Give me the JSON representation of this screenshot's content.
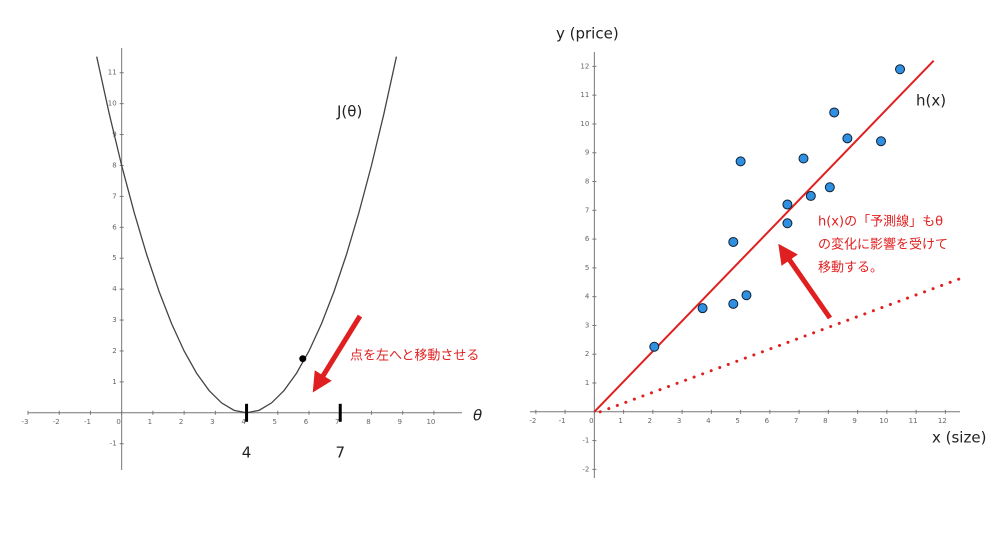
{
  "chart_data": [
    {
      "type": "line",
      "xlim": [
        -3,
        10.9
      ],
      "ylim": [
        -1.85,
        11.8
      ],
      "xticks": [
        -3,
        -2,
        -1,
        0,
        1,
        2,
        3,
        4,
        5,
        6,
        7,
        8,
        9,
        10
      ],
      "yticks": [
        -1,
        1,
        2,
        3,
        4,
        5,
        6,
        7,
        8,
        9,
        10,
        11
      ],
      "x": [
        -0.8,
        -0.4,
        0,
        0.4,
        0.8,
        1.2,
        1.6,
        2,
        2.4,
        2.8,
        3.2,
        3.6,
        4,
        4.4,
        4.8,
        5.2,
        5.6,
        6,
        6.4,
        6.8,
        7.2,
        7.6,
        8,
        8.4,
        8.8
      ],
      "series": [
        {
          "color": "#444444",
          "values": [
            11.52,
            9.68,
            8,
            6.48,
            5.12,
            3.92,
            2.88,
            2,
            1.28,
            0.72,
            0.32,
            0.08,
            0,
            0.08,
            0.32,
            0.72,
            1.28,
            2,
            2.88,
            3.92,
            5.12,
            6.48,
            8,
            9.68,
            11.52
          ]
        }
      ],
      "point": {
        "x": 5.8,
        "y": 1.75,
        "color": "#000000"
      },
      "markers": [
        4,
        7
      ],
      "curve_label": "J(θ)",
      "x_label": "θ",
      "annotation": "点を左へと移動させる"
    },
    {
      "type": "scatter",
      "xlim": [
        -2.2,
        12.5
      ],
      "ylim": [
        -2.3,
        12.5
      ],
      "xticks": [
        -2,
        -1,
        0,
        1,
        2,
        3,
        4,
        5,
        6,
        7,
        8,
        9,
        10,
        11,
        12
      ],
      "yticks": [
        -2,
        -1,
        1,
        2,
        3,
        4,
        5,
        6,
        7,
        8,
        9,
        10,
        11,
        12
      ],
      "y_label": "y (price)",
      "x_label": "x (size)",
      "series": [
        {
          "color": "#2f8fe0",
          "x": [
            2.05,
            3.7,
            4.75,
            5.2,
            4.75,
            5.0,
            6.6,
            6.6,
            7.4,
            7.15,
            8.05,
            8.2,
            8.65,
            9.8,
            10.45
          ],
          "values": [
            2.26,
            3.6,
            3.75,
            4.05,
            5.9,
            8.7,
            7.2,
            6.55,
            7.5,
            8.8,
            7.8,
            10.4,
            9.5,
            9.4,
            11.9
          ]
        }
      ],
      "lines": [
        {
          "color": "#e02020",
          "style": "solid",
          "x": [
            0,
            11.6
          ],
          "values": [
            0,
            12.2
          ]
        },
        {
          "color": "#e02020",
          "style": "dotted",
          "x": [
            0.2,
            12.7
          ],
          "values": [
            0,
            4.7
          ]
        }
      ],
      "line_label": "h(x)",
      "annotation": [
        "h(x)の「予測線」もθ",
        "の変化に影響を受けて",
        "移動する。"
      ]
    }
  ]
}
